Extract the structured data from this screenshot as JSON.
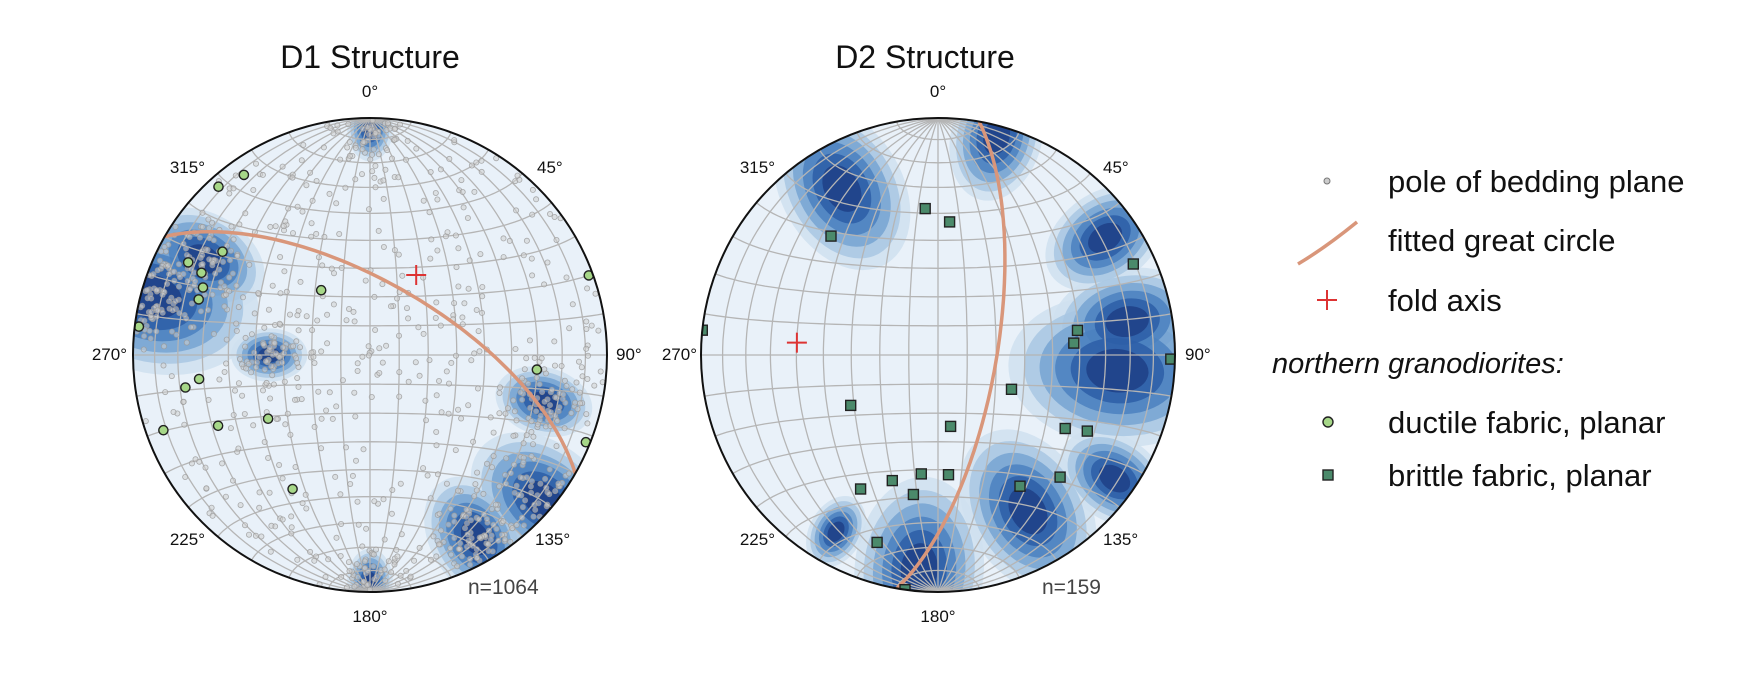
{
  "chart_data": [
    {
      "type": "stereonet",
      "title": "D1 Structure",
      "direction_labels": [
        "0°",
        "45°",
        "90°",
        "135°",
        "180°",
        "225°",
        "270°",
        "315°"
      ],
      "count_label": "n=1064",
      "great_circle": {
        "strike": 300,
        "dip": 65
      },
      "fold_axis": {
        "trend": 30,
        "plunge": 58
      },
      "density_centers": [
        {
          "trend": 285,
          "plunge": 5,
          "strength": 1.0
        },
        {
          "trend": 300,
          "plunge": 20,
          "strength": 0.6
        },
        {
          "trend": 270,
          "plunge": 55,
          "strength": 0.35
        },
        {
          "trend": 130,
          "plunge": 5,
          "strength": 0.75
        },
        {
          "trend": 150,
          "plunge": 12,
          "strength": 0.6
        },
        {
          "trend": 105,
          "plunge": 25,
          "strength": 0.45
        },
        {
          "trend": 0,
          "plunge": 5,
          "strength": 0.3
        },
        {
          "trend": 180,
          "plunge": 5,
          "strength": 0.3
        }
      ],
      "bedding_pole_count": 1064,
      "ductile_fabric_poles": [
        {
          "trend": 318,
          "plunge": 5
        },
        {
          "trend": 325,
          "plunge": 8
        },
        {
          "trend": 305,
          "plunge": 25
        },
        {
          "trend": 297,
          "plunge": 15
        },
        {
          "trend": 296,
          "plunge": 22
        },
        {
          "trend": 292,
          "plunge": 25
        },
        {
          "trend": 288,
          "plunge": 25
        },
        {
          "trend": 277,
          "plunge": 2
        },
        {
          "trend": 262,
          "plunge": 28
        },
        {
          "trend": 260,
          "plunge": 22
        },
        {
          "trend": 250,
          "plunge": 8
        },
        {
          "trend": 245,
          "plunge": 30
        },
        {
          "trend": 238,
          "plunge": 48
        },
        {
          "trend": 210,
          "plunge": 35
        },
        {
          "trend": 323,
          "plunge": 62
        },
        {
          "trend": 70,
          "plunge": 2
        },
        {
          "trend": 95,
          "plunge": 30
        },
        {
          "trend": 112,
          "plunge": 2
        }
      ]
    },
    {
      "type": "stereonet",
      "title": "D2 Structure",
      "direction_labels": [
        "0°",
        "45°",
        "90°",
        "135°",
        "180°",
        "225°",
        "270°",
        "315°"
      ],
      "count_label": "n=159",
      "great_circle": {
        "strike": 10,
        "dip": 70
      },
      "fold_axis": {
        "trend": 275,
        "plunge": 40
      },
      "density_centers": [
        {
          "trend": 95,
          "plunge": 25,
          "strength": 1.0
        },
        {
          "trend": 80,
          "plunge": 20,
          "strength": 0.7
        },
        {
          "trend": 125,
          "plunge": 10,
          "strength": 0.55
        },
        {
          "trend": 55,
          "plunge": 15,
          "strength": 0.6
        },
        {
          "trend": 150,
          "plunge": 25,
          "strength": 0.8
        },
        {
          "trend": 185,
          "plunge": 10,
          "strength": 0.85
        },
        {
          "trend": 330,
          "plunge": 20,
          "strength": 0.8
        },
        {
          "trend": 15,
          "plunge": 5,
          "strength": 0.6
        },
        {
          "trend": 210,
          "plunge": 15,
          "strength": 0.35
        }
      ],
      "brittle_fabric_poles": [
        {
          "trend": 355,
          "plunge": 38
        },
        {
          "trend": 5,
          "plunge": 43
        },
        {
          "trend": 318,
          "plunge": 33
        },
        {
          "trend": 276,
          "plunge": 0
        },
        {
          "trend": 65,
          "plunge": 10
        },
        {
          "trend": 80,
          "plunge": 40
        },
        {
          "trend": 85,
          "plunge": 42
        },
        {
          "trend": 91,
          "plunge": 2
        },
        {
          "trend": 240,
          "plunge": 55
        },
        {
          "trend": 115,
          "plunge": 62
        },
        {
          "trend": 170,
          "plunge": 65
        },
        {
          "trend": 210,
          "plunge": 35
        },
        {
          "trend": 190,
          "plunge": 40
        },
        {
          "trend": 200,
          "plunge": 43
        },
        {
          "trend": 188,
          "plunge": 48
        },
        {
          "trend": 175,
          "plunge": 48
        },
        {
          "trend": 148,
          "plunge": 35
        },
        {
          "trend": 135,
          "plunge": 28
        },
        {
          "trend": 120,
          "plunge": 38
        },
        {
          "trend": 117,
          "plunge": 30
        },
        {
          "trend": 198,
          "plunge": 18
        },
        {
          "trend": 188,
          "plunge": 0
        }
      ]
    }
  ],
  "colors": {
    "background": "#ffffff",
    "circle_outline": "#111111",
    "grid": "#b5b5b5",
    "density_levels": [
      "#e9f1f9",
      "#cfe0f0",
      "#a8c7e3",
      "#77a5d2",
      "#4b81bf",
      "#2d5ea7",
      "#1e3f86"
    ],
    "bedding_pole": "#9a9a9a",
    "great_circle": "#d9967a",
    "fold_axis": "#dd3333",
    "ductile_fabric": "#a6d788",
    "brittle_fabric": "#4b8a6b"
  },
  "legend": {
    "bedding": "pole of bedding plane",
    "great_circle": "fitted great circle",
    "fold_axis": "fold axis",
    "group_heading": "northern granodiorites:",
    "ductile": "ductile fabric, planar",
    "brittle": "brittle fabric, planar"
  }
}
